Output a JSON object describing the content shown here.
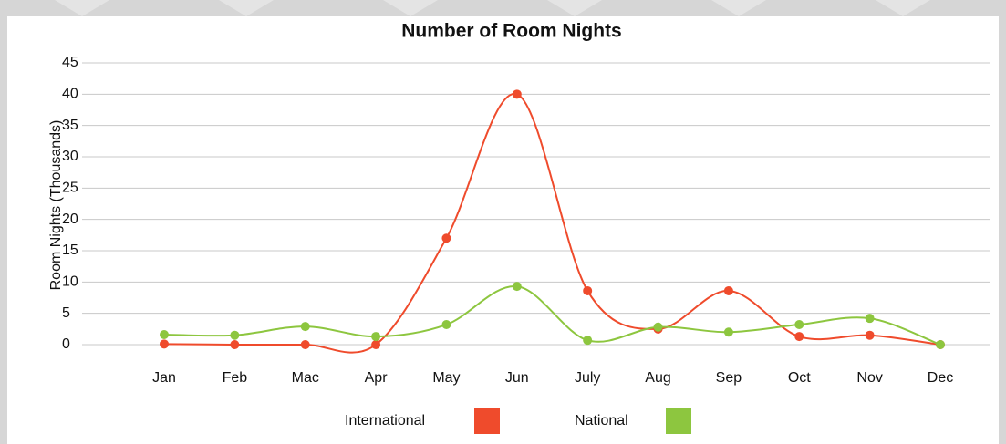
{
  "chart_data": {
    "type": "line",
    "title": "Number of Room Nights",
    "y_label": "Room Nights (Thousands)",
    "categories": [
      "Jan",
      "Feb",
      "Mac",
      "Apr",
      "May",
      "Jun",
      "July",
      "Aug",
      "Sep",
      "Oct",
      "Nov",
      "Dec"
    ],
    "series": [
      {
        "name": "International",
        "color": "#ef4b2c",
        "values": [
          0.1,
          0,
          0,
          0,
          17,
          40,
          8.6,
          2.5,
          8.6,
          1.3,
          1.5,
          0
        ]
      },
      {
        "name": "National",
        "color": "#8dc63f",
        "values": [
          1.6,
          1.5,
          2.9,
          1.3,
          3.2,
          9.3,
          0.7,
          2.8,
          2,
          3.2,
          4.2,
          0
        ]
      }
    ],
    "ylim": [
      0,
      45
    ],
    "yticks": [
      0,
      5,
      10,
      15,
      20,
      25,
      30,
      35,
      40,
      45
    ],
    "grid": true
  }
}
